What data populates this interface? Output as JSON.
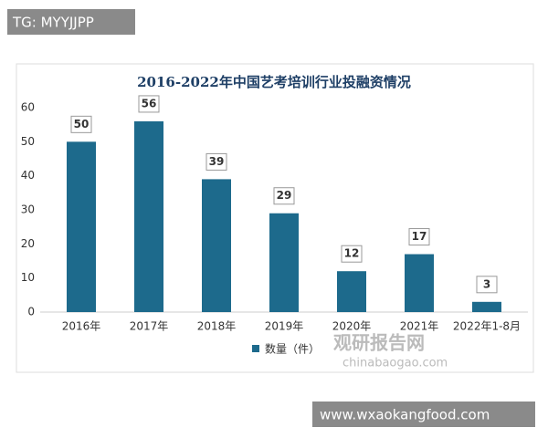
{
  "chart_data": {
    "type": "bar",
    "title": "2016-2022年中国艺考培训行业投融资情况",
    "categories": [
      "2016年",
      "2017年",
      "2018年",
      "2019年",
      "2020年",
      "2021年",
      "2022年1-8月"
    ],
    "series": [
      {
        "name": "数量（件）",
        "color": "#1d6a8c",
        "values": [
          50,
          56,
          39,
          29,
          12,
          17,
          3
        ]
      }
    ],
    "ylim": [
      0,
      60
    ],
    "yticks": [
      0,
      10,
      20,
      30,
      40,
      50,
      60
    ],
    "grid": false,
    "legend": "bottom"
  },
  "overlays": {
    "top_left": "TG: MYYJJPP",
    "bottom_right": "www.wxaokangfood.com",
    "watermark": [
      "观研报告网",
      "chinabaogao.com"
    ]
  }
}
